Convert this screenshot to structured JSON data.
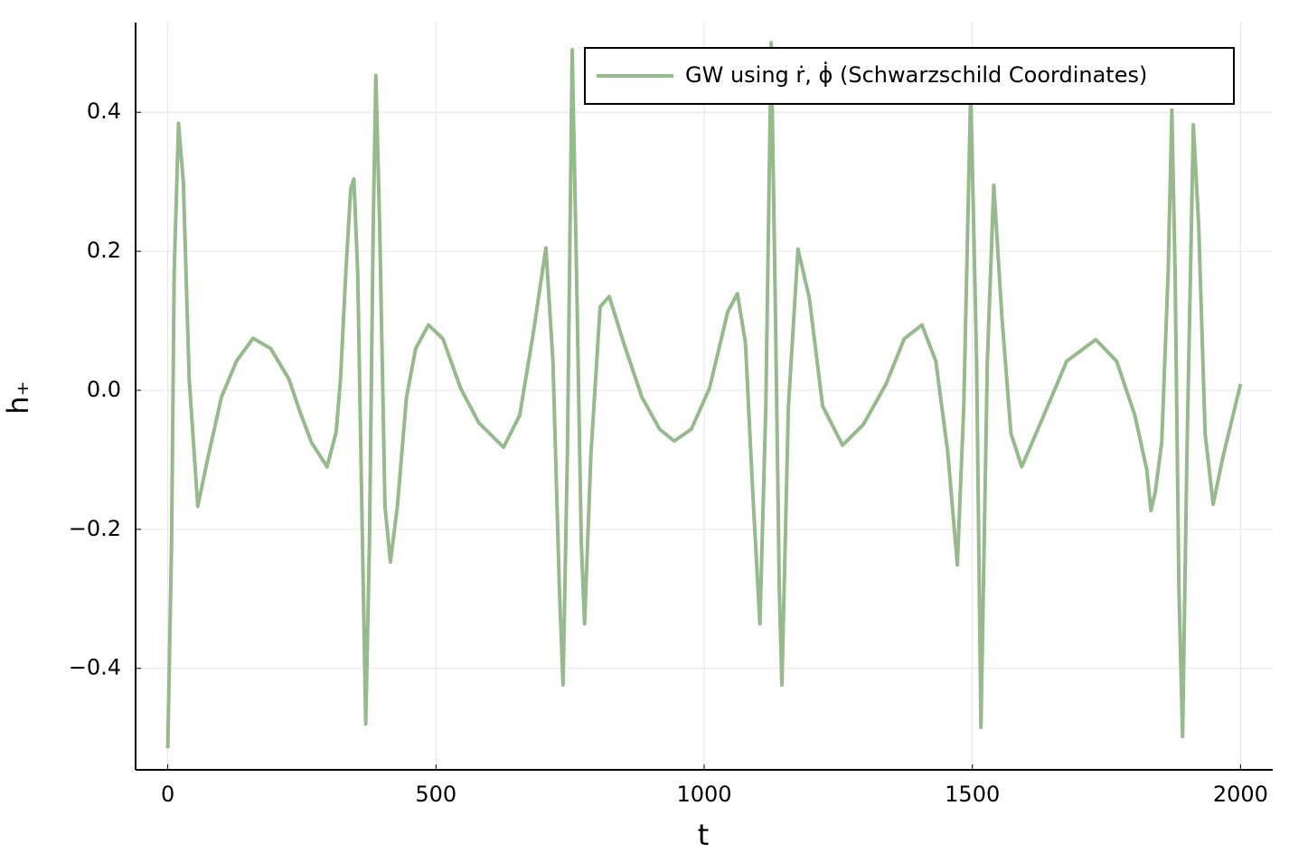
{
  "chart_data": {
    "type": "line",
    "xlabel": "t",
    "ylabel": "h₊",
    "x": [
      0,
      7,
      12,
      20,
      29,
      40,
      56,
      74,
      100,
      128,
      159,
      192,
      226,
      246,
      268,
      297,
      314,
      322,
      332,
      341,
      347,
      354,
      363,
      369,
      376,
      383,
      388,
      395,
      405,
      415,
      428,
      445,
      462,
      486,
      513,
      546,
      580,
      626,
      656,
      681,
      705,
      718,
      730,
      737,
      745,
      754,
      762,
      771,
      777,
      789,
      806,
      823,
      850,
      884,
      917,
      944,
      976,
      1010,
      1044,
      1062,
      1077,
      1091,
      1104,
      1115,
      1125,
      1133,
      1140,
      1145,
      1157,
      1175,
      1196,
      1221,
      1258,
      1297,
      1339,
      1373,
      1406,
      1432,
      1454,
      1472,
      1484,
      1497,
      1508,
      1516,
      1528,
      1540,
      1555,
      1572,
      1592,
      1626,
      1676,
      1730,
      1769,
      1803,
      1825,
      1833,
      1841,
      1853,
      1865,
      1872,
      1878,
      1885,
      1892,
      1900,
      1912,
      1922,
      1934,
      1949,
      1966,
      2000
    ],
    "series": [
      {
        "name": "GW using ṙ, ϕ̇ (Schwarzschild Coordinates)",
        "color": "#95ba8c",
        "values": [
          -0.515,
          -0.22,
          0.17,
          0.384,
          0.3,
          0.016,
          -0.167,
          -0.1,
          -0.01,
          0.042,
          0.075,
          0.06,
          0.016,
          -0.03,
          -0.075,
          -0.11,
          -0.06,
          0.016,
          0.17,
          0.29,
          0.304,
          0.17,
          -0.22,
          -0.48,
          -0.22,
          0.237,
          0.453,
          0.237,
          -0.167,
          -0.247,
          -0.167,
          -0.01,
          0.06,
          0.094,
          0.074,
          0.003,
          -0.047,
          -0.082,
          -0.036,
          0.08,
          0.205,
          0.042,
          -0.284,
          -0.424,
          -0.09,
          0.49,
          0.17,
          -0.22,
          -0.336,
          -0.09,
          0.12,
          0.135,
          0.068,
          -0.01,
          -0.056,
          -0.073,
          -0.056,
          0.003,
          0.113,
          0.139,
          0.068,
          -0.153,
          -0.336,
          -0.023,
          0.5,
          0.107,
          -0.284,
          -0.424,
          -0.023,
          0.203,
          0.133,
          -0.023,
          -0.079,
          -0.049,
          0.009,
          0.074,
          0.094,
          0.042,
          -0.088,
          -0.251,
          -0.023,
          0.432,
          0.042,
          -0.485,
          0.042,
          0.295,
          0.107,
          -0.062,
          -0.11,
          -0.049,
          0.042,
          0.073,
          0.042,
          -0.036,
          -0.114,
          -0.173,
          -0.147,
          -0.075,
          0.17,
          0.403,
          0.17,
          -0.284,
          -0.498,
          -0.09,
          0.382,
          0.237,
          -0.062,
          -0.164,
          -0.1,
          0.009
        ]
      }
    ],
    "xlim": [
      -60,
      2060
    ],
    "ylim": [
      -0.546,
      0.529
    ],
    "xticks": [
      0,
      500,
      1000,
      1500,
      2000
    ],
    "yticks": [
      {
        "value": -0.4,
        "label": "−0.4"
      },
      {
        "value": -0.2,
        "label": "−0.2"
      },
      {
        "value": 0,
        "label": "0.0"
      },
      0.2,
      0.4
    ],
    "grid": true,
    "legend": "top right"
  }
}
